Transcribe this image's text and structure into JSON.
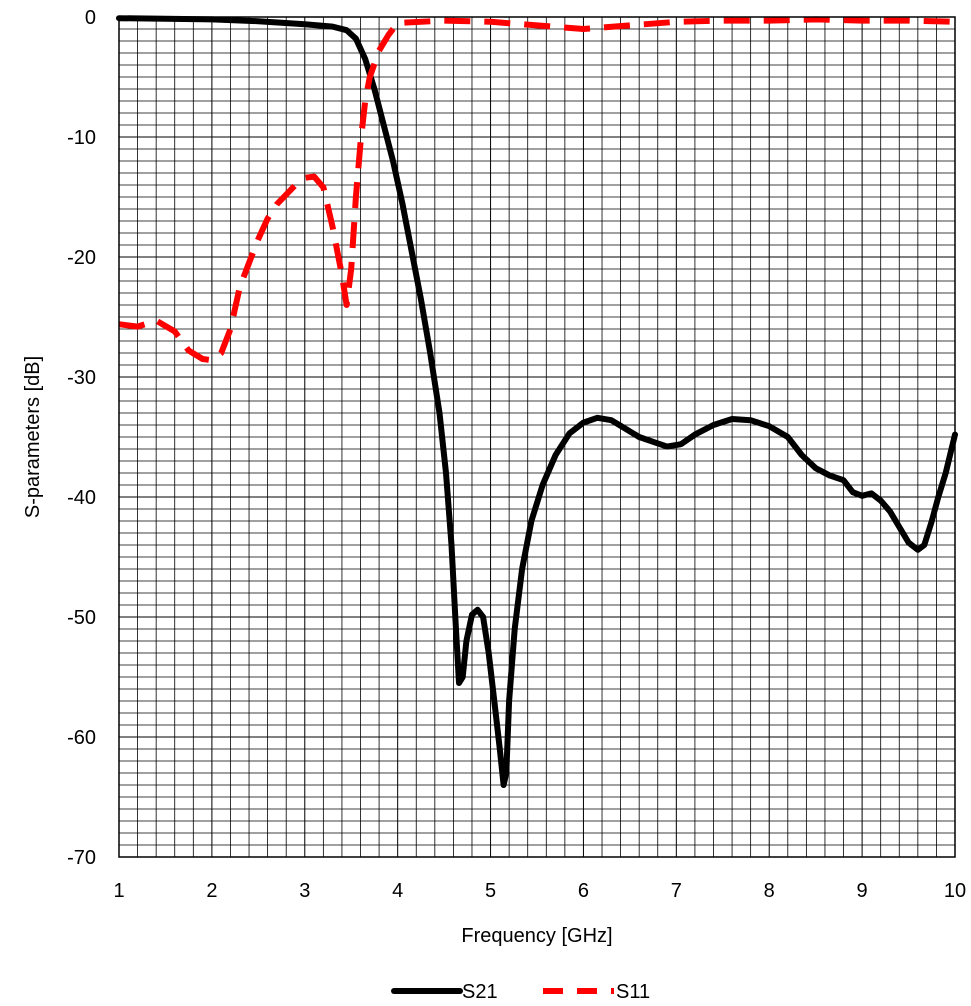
{
  "chart_data": {
    "type": "line",
    "title": "",
    "xlabel": "Frequency [GHz]",
    "ylabel": "S-parameters [dB]",
    "xlim": [
      1,
      10
    ],
    "ylim": [
      -70,
      0
    ],
    "x_ticks": [
      "1",
      "2",
      "3",
      "4",
      "5",
      "6",
      "7",
      "8",
      "9",
      "10"
    ],
    "y_ticks": [
      "0",
      "-10",
      "-20",
      "-30",
      "-40",
      "-50",
      "-60",
      "-70"
    ],
    "grid": "on (minor grid every 0.2 GHz and 1 dB)",
    "legend_position": "bottom-center",
    "series": [
      {
        "name": "S21",
        "color": "#000000",
        "style": "solid",
        "points": [
          [
            1.0,
            -0.1
          ],
          [
            1.5,
            -0.15
          ],
          [
            2.0,
            -0.2
          ],
          [
            2.5,
            -0.35
          ],
          [
            3.0,
            -0.6
          ],
          [
            3.3,
            -0.8
          ],
          [
            3.45,
            -1.1
          ],
          [
            3.55,
            -1.8
          ],
          [
            3.65,
            -3.5
          ],
          [
            3.75,
            -6
          ],
          [
            3.85,
            -9
          ],
          [
            3.95,
            -12
          ],
          [
            4.05,
            -15.5
          ],
          [
            4.15,
            -19.5
          ],
          [
            4.25,
            -23.5
          ],
          [
            4.35,
            -28
          ],
          [
            4.45,
            -33
          ],
          [
            4.52,
            -38
          ],
          [
            4.58,
            -44
          ],
          [
            4.62,
            -50
          ],
          [
            4.66,
            -55.5
          ],
          [
            4.7,
            -55
          ],
          [
            4.74,
            -52
          ],
          [
            4.8,
            -49.8
          ],
          [
            4.86,
            -49.4
          ],
          [
            4.92,
            -50
          ],
          [
            4.98,
            -53
          ],
          [
            5.04,
            -57
          ],
          [
            5.1,
            -61
          ],
          [
            5.14,
            -64
          ],
          [
            5.17,
            -63
          ],
          [
            5.2,
            -57
          ],
          [
            5.26,
            -51
          ],
          [
            5.34,
            -46
          ],
          [
            5.44,
            -42
          ],
          [
            5.56,
            -39
          ],
          [
            5.7,
            -36.5
          ],
          [
            5.85,
            -34.7
          ],
          [
            6.0,
            -33.8
          ],
          [
            6.15,
            -33.4
          ],
          [
            6.3,
            -33.6
          ],
          [
            6.45,
            -34.3
          ],
          [
            6.6,
            -35.0
          ],
          [
            6.75,
            -35.4
          ],
          [
            6.9,
            -35.8
          ],
          [
            7.05,
            -35.6
          ],
          [
            7.2,
            -34.8
          ],
          [
            7.4,
            -34.0
          ],
          [
            7.6,
            -33.5
          ],
          [
            7.8,
            -33.6
          ],
          [
            8.0,
            -34.1
          ],
          [
            8.2,
            -35.0
          ],
          [
            8.35,
            -36.5
          ],
          [
            8.5,
            -37.6
          ],
          [
            8.65,
            -38.2
          ],
          [
            8.8,
            -38.6
          ],
          [
            8.9,
            -39.6
          ],
          [
            9.0,
            -39.9
          ],
          [
            9.1,
            -39.7
          ],
          [
            9.2,
            -40.3
          ],
          [
            9.3,
            -41.2
          ],
          [
            9.4,
            -42.5
          ],
          [
            9.5,
            -43.8
          ],
          [
            9.6,
            -44.4
          ],
          [
            9.67,
            -44.0
          ],
          [
            9.75,
            -42
          ],
          [
            9.82,
            -40
          ],
          [
            9.9,
            -38
          ],
          [
            10.0,
            -34.8
          ]
        ]
      },
      {
        "name": "S11",
        "color": "#ff0000",
        "style": "dashed",
        "points": [
          [
            1.0,
            -25.6
          ],
          [
            1.2,
            -25.8
          ],
          [
            1.4,
            -25.3
          ],
          [
            1.6,
            -26.2
          ],
          [
            1.75,
            -27.8
          ],
          [
            1.9,
            -28.5
          ],
          [
            2.0,
            -28.6
          ],
          [
            2.1,
            -28.0
          ],
          [
            2.2,
            -26.0
          ],
          [
            2.3,
            -22.5
          ],
          [
            2.4,
            -20.5
          ],
          [
            2.5,
            -18.5
          ],
          [
            2.6,
            -16.8
          ],
          [
            2.7,
            -15.6
          ],
          [
            2.8,
            -14.8
          ],
          [
            2.9,
            -14.0
          ],
          [
            3.0,
            -13.4
          ],
          [
            3.1,
            -13.3
          ],
          [
            3.2,
            -14.2
          ],
          [
            3.3,
            -17.5
          ],
          [
            3.4,
            -21.5
          ],
          [
            3.45,
            -24.0
          ],
          [
            3.5,
            -21
          ],
          [
            3.55,
            -15
          ],
          [
            3.6,
            -10.5
          ],
          [
            3.65,
            -7
          ],
          [
            3.7,
            -5
          ],
          [
            3.8,
            -2.8
          ],
          [
            3.9,
            -1.5
          ],
          [
            4.0,
            -0.5
          ],
          [
            4.5,
            -0.3
          ],
          [
            5.0,
            -0.4
          ],
          [
            5.5,
            -0.7
          ],
          [
            6.0,
            -1.0
          ],
          [
            6.5,
            -0.7
          ],
          [
            7.0,
            -0.4
          ],
          [
            7.5,
            -0.3
          ],
          [
            8.0,
            -0.3
          ],
          [
            8.5,
            -0.2
          ],
          [
            9.0,
            -0.3
          ],
          [
            9.5,
            -0.3
          ],
          [
            10.0,
            -0.4
          ]
        ]
      }
    ]
  }
}
